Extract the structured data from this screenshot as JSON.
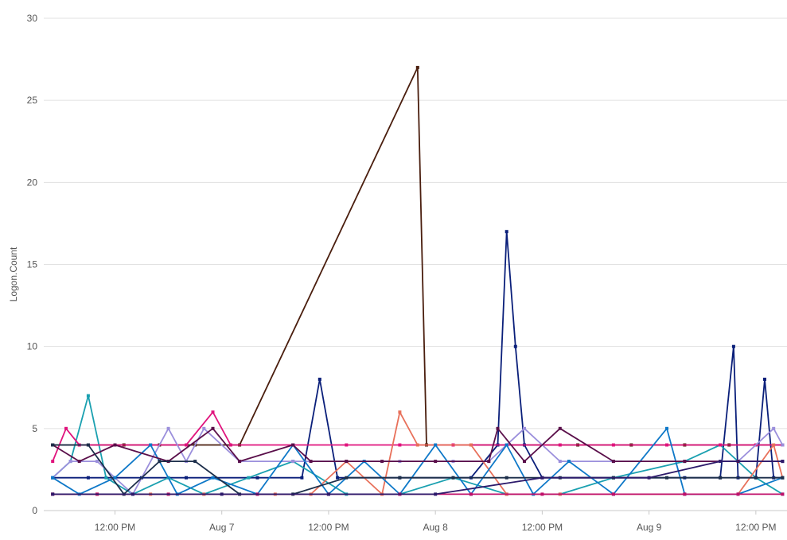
{
  "chart_data": {
    "type": "line",
    "ylabel": "Logon.Count",
    "xlabel": "",
    "ylim": [
      0,
      30
    ],
    "yticks": [
      0,
      5,
      10,
      15,
      20,
      25,
      30
    ],
    "xlim": [
      "2025-08-06T04:00",
      "2025-08-09T15:30"
    ],
    "xticks": [
      {
        "t": "2025-08-06T12:00",
        "label": "12:00 PM"
      },
      {
        "t": "2025-08-07T00:00",
        "label": "Aug 7"
      },
      {
        "t": "2025-08-07T12:00",
        "label": "12:00 PM"
      },
      {
        "t": "2025-08-08T00:00",
        "label": "Aug 8"
      },
      {
        "t": "2025-08-08T12:00",
        "label": "12:00 PM"
      },
      {
        "t": "2025-08-09T00:00",
        "label": "Aug 9"
      },
      {
        "t": "2025-08-09T12:00",
        "label": "12:00 PM"
      }
    ],
    "grid": true,
    "legend": "none",
    "series": [
      {
        "color": "#4a1e0e",
        "points": [
          [
            "2025-08-06T05:00",
            4
          ],
          [
            "2025-08-06T09:00",
            4
          ],
          [
            "2025-08-06T13:00",
            4
          ],
          [
            "2025-08-06T17:00",
            4
          ],
          [
            "2025-08-06T21:00",
            4
          ],
          [
            "2025-08-07T02:00",
            4
          ],
          [
            "2025-08-07T22:00",
            27
          ],
          [
            "2025-08-07T23:00",
            4
          ],
          [
            "2025-08-08T04:00",
            4
          ],
          [
            "2025-08-08T10:00",
            4
          ],
          [
            "2025-08-08T16:00",
            4
          ],
          [
            "2025-08-08T22:00",
            4
          ],
          [
            "2025-08-09T04:00",
            4
          ],
          [
            "2025-08-09T09:00",
            4
          ],
          [
            "2025-08-09T12:00",
            4
          ],
          [
            "2025-08-09T15:00",
            4
          ]
        ]
      },
      {
        "color": "#0a1f7a",
        "points": [
          [
            "2025-08-06T05:00",
            2
          ],
          [
            "2025-08-06T09:00",
            2
          ],
          [
            "2025-08-06T15:00",
            2
          ],
          [
            "2025-08-06T20:00",
            2
          ],
          [
            "2025-08-07T04:00",
            2
          ],
          [
            "2025-08-07T09:00",
            2
          ],
          [
            "2025-08-07T11:00",
            8
          ],
          [
            "2025-08-07T13:00",
            2
          ],
          [
            "2025-08-07T20:00",
            2
          ],
          [
            "2025-08-08T04:00",
            2
          ],
          [
            "2025-08-08T07:00",
            4
          ],
          [
            "2025-08-08T08:00",
            17
          ],
          [
            "2025-08-08T09:00",
            10
          ],
          [
            "2025-08-08T10:00",
            4
          ],
          [
            "2025-08-08T12:00",
            2
          ],
          [
            "2025-08-08T20:00",
            2
          ],
          [
            "2025-08-09T04:00",
            2
          ],
          [
            "2025-08-09T08:00",
            2
          ],
          [
            "2025-08-09T09:30",
            10
          ],
          [
            "2025-08-09T10:00",
            2
          ],
          [
            "2025-08-09T12:00",
            2
          ],
          [
            "2025-08-09T13:00",
            8
          ],
          [
            "2025-08-09T14:00",
            2
          ],
          [
            "2025-08-09T15:00",
            2
          ]
        ]
      },
      {
        "color": "#1aa0b0",
        "points": [
          [
            "2025-08-06T05:00",
            2
          ],
          [
            "2025-08-06T07:00",
            3
          ],
          [
            "2025-08-06T09:00",
            7
          ],
          [
            "2025-08-06T11:00",
            2
          ],
          [
            "2025-08-06T14:00",
            1
          ],
          [
            "2025-08-06T18:00",
            2
          ],
          [
            "2025-08-06T22:00",
            1
          ],
          [
            "2025-08-07T03:00",
            2
          ],
          [
            "2025-08-07T08:00",
            3
          ],
          [
            "2025-08-07T14:00",
            1
          ],
          [
            "2025-08-07T20:00",
            1
          ],
          [
            "2025-08-08T02:00",
            2
          ],
          [
            "2025-08-08T08:00",
            1
          ],
          [
            "2025-08-08T14:00",
            1
          ],
          [
            "2025-08-08T20:00",
            2
          ],
          [
            "2025-08-09T04:00",
            3
          ],
          [
            "2025-08-09T08:00",
            4
          ],
          [
            "2025-08-09T12:00",
            2
          ],
          [
            "2025-08-09T15:00",
            1
          ]
        ]
      },
      {
        "color": "#e0147d",
        "points": [
          [
            "2025-08-06T05:00",
            3
          ],
          [
            "2025-08-06T06:30",
            5
          ],
          [
            "2025-08-06T08:00",
            4
          ],
          [
            "2025-08-06T12:00",
            4
          ],
          [
            "2025-08-06T16:00",
            4
          ],
          [
            "2025-08-06T20:00",
            4
          ],
          [
            "2025-08-06T23:00",
            6
          ],
          [
            "2025-08-07T01:00",
            4
          ],
          [
            "2025-08-07T08:00",
            4
          ],
          [
            "2025-08-07T14:00",
            4
          ],
          [
            "2025-08-07T20:00",
            4
          ],
          [
            "2025-08-08T02:00",
            4
          ],
          [
            "2025-08-08T08:00",
            4
          ],
          [
            "2025-08-08T14:00",
            4
          ],
          [
            "2025-08-08T20:00",
            4
          ],
          [
            "2025-08-09T02:00",
            4
          ],
          [
            "2025-08-09T08:00",
            4
          ],
          [
            "2025-08-09T12:00",
            4
          ],
          [
            "2025-08-09T15:00",
            4
          ]
        ]
      },
      {
        "color": "#9b8fdc",
        "points": [
          [
            "2025-08-06T05:00",
            2
          ],
          [
            "2025-08-06T07:00",
            3
          ],
          [
            "2025-08-06T10:00",
            3
          ],
          [
            "2025-08-06T14:00",
            1
          ],
          [
            "2025-08-06T18:00",
            5
          ],
          [
            "2025-08-06T20:00",
            3
          ],
          [
            "2025-08-06T22:00",
            5
          ],
          [
            "2025-08-07T02:00",
            3
          ],
          [
            "2025-08-07T08:00",
            3
          ],
          [
            "2025-08-07T14:00",
            3
          ],
          [
            "2025-08-07T20:00",
            3
          ],
          [
            "2025-08-08T02:00",
            3
          ],
          [
            "2025-08-08T06:00",
            3
          ],
          [
            "2025-08-08T10:00",
            5
          ],
          [
            "2025-08-08T14:00",
            3
          ],
          [
            "2025-08-08T20:00",
            3
          ],
          [
            "2025-08-09T04:00",
            3
          ],
          [
            "2025-08-09T10:00",
            3
          ],
          [
            "2025-08-09T14:00",
            5
          ],
          [
            "2025-08-09T15:00",
            4
          ]
        ]
      },
      {
        "color": "#e8705a",
        "points": [
          [
            "2025-08-06T05:00",
            1
          ],
          [
            "2025-08-06T10:00",
            1
          ],
          [
            "2025-08-06T16:00",
            1
          ],
          [
            "2025-08-06T22:00",
            1
          ],
          [
            "2025-08-07T06:00",
            1
          ],
          [
            "2025-08-07T10:00",
            1
          ],
          [
            "2025-08-07T14:00",
            3
          ],
          [
            "2025-08-07T18:00",
            1
          ],
          [
            "2025-08-07T20:00",
            6
          ],
          [
            "2025-08-07T22:00",
            4
          ],
          [
            "2025-08-08T04:00",
            4
          ],
          [
            "2025-08-08T08:00",
            1
          ],
          [
            "2025-08-08T14:00",
            1
          ],
          [
            "2025-08-08T20:00",
            1
          ],
          [
            "2025-08-09T04:00",
            1
          ],
          [
            "2025-08-09T10:00",
            1
          ],
          [
            "2025-08-09T14:00",
            4
          ],
          [
            "2025-08-09T15:00",
            2
          ]
        ]
      },
      {
        "color": "#0e78c8",
        "points": [
          [
            "2025-08-06T05:00",
            2
          ],
          [
            "2025-08-06T08:00",
            1
          ],
          [
            "2025-08-06T12:00",
            2
          ],
          [
            "2025-08-06T16:00",
            4
          ],
          [
            "2025-08-06T19:00",
            1
          ],
          [
            "2025-08-06T23:00",
            2
          ],
          [
            "2025-08-07T04:00",
            1
          ],
          [
            "2025-08-07T08:00",
            4
          ],
          [
            "2025-08-07T12:00",
            1
          ],
          [
            "2025-08-07T16:00",
            3
          ],
          [
            "2025-08-07T20:00",
            1
          ],
          [
            "2025-08-08T00:00",
            4
          ],
          [
            "2025-08-08T04:00",
            1
          ],
          [
            "2025-08-08T08:00",
            4
          ],
          [
            "2025-08-08T11:00",
            1
          ],
          [
            "2025-08-08T15:00",
            3
          ],
          [
            "2025-08-08T20:00",
            1
          ],
          [
            "2025-08-09T02:00",
            5
          ],
          [
            "2025-08-09T04:00",
            1
          ],
          [
            "2025-08-09T10:00",
            1
          ],
          [
            "2025-08-09T15:00",
            2
          ]
        ]
      },
      {
        "color": "#5a0f4a",
        "points": [
          [
            "2025-08-06T05:00",
            4
          ],
          [
            "2025-08-06T08:00",
            3
          ],
          [
            "2025-08-06T12:00",
            4
          ],
          [
            "2025-08-06T18:00",
            3
          ],
          [
            "2025-08-06T23:00",
            5
          ],
          [
            "2025-08-07T02:00",
            3
          ],
          [
            "2025-08-07T08:00",
            4
          ],
          [
            "2025-08-07T10:00",
            3
          ],
          [
            "2025-08-07T14:00",
            3
          ],
          [
            "2025-08-07T18:00",
            3
          ],
          [
            "2025-08-08T00:00",
            3
          ],
          [
            "2025-08-08T06:00",
            3
          ],
          [
            "2025-08-08T07:00",
            5
          ],
          [
            "2025-08-08T10:00",
            3
          ],
          [
            "2025-08-08T14:00",
            5
          ],
          [
            "2025-08-08T20:00",
            3
          ],
          [
            "2025-08-09T04:00",
            3
          ],
          [
            "2025-08-09T10:00",
            3
          ],
          [
            "2025-08-09T15:00",
            3
          ]
        ]
      },
      {
        "color": "#1c2e4a",
        "points": [
          [
            "2025-08-06T05:00",
            4
          ],
          [
            "2025-08-06T09:00",
            4
          ],
          [
            "2025-08-06T13:00",
            1
          ],
          [
            "2025-08-06T17:00",
            3
          ],
          [
            "2025-08-06T21:00",
            3
          ],
          [
            "2025-08-07T02:00",
            1
          ],
          [
            "2025-08-07T08:00",
            1
          ],
          [
            "2025-08-07T14:00",
            2
          ],
          [
            "2025-08-07T20:00",
            2
          ],
          [
            "2025-08-08T02:00",
            2
          ],
          [
            "2025-08-08T08:00",
            2
          ],
          [
            "2025-08-08T14:00",
            2
          ],
          [
            "2025-08-08T20:00",
            2
          ],
          [
            "2025-08-09T02:00",
            2
          ],
          [
            "2025-08-09T08:00",
            2
          ],
          [
            "2025-08-09T12:00",
            2
          ],
          [
            "2025-08-09T15:00",
            2
          ]
        ]
      },
      {
        "color": "#c0106a",
        "points": [
          [
            "2025-08-06T05:00",
            1
          ],
          [
            "2025-08-06T10:00",
            1
          ],
          [
            "2025-08-06T18:00",
            1
          ],
          [
            "2025-08-07T04:00",
            1
          ],
          [
            "2025-08-07T12:00",
            1
          ],
          [
            "2025-08-07T20:00",
            1
          ],
          [
            "2025-08-08T04:00",
            1
          ],
          [
            "2025-08-08T12:00",
            1
          ],
          [
            "2025-08-08T20:00",
            1
          ],
          [
            "2025-08-09T04:00",
            1
          ],
          [
            "2025-08-09T10:00",
            1
          ],
          [
            "2025-08-09T15:00",
            1
          ]
        ]
      },
      {
        "color": "#2d1a6b",
        "points": [
          [
            "2025-08-06T05:00",
            1
          ],
          [
            "2025-08-06T14:00",
            1
          ],
          [
            "2025-08-07T00:00",
            1
          ],
          [
            "2025-08-07T12:00",
            1
          ],
          [
            "2025-08-08T00:00",
            1
          ],
          [
            "2025-08-08T12:00",
            2
          ],
          [
            "2025-08-09T00:00",
            2
          ],
          [
            "2025-08-09T08:00",
            3
          ],
          [
            "2025-08-09T15:00",
            3
          ]
        ]
      }
    ]
  }
}
